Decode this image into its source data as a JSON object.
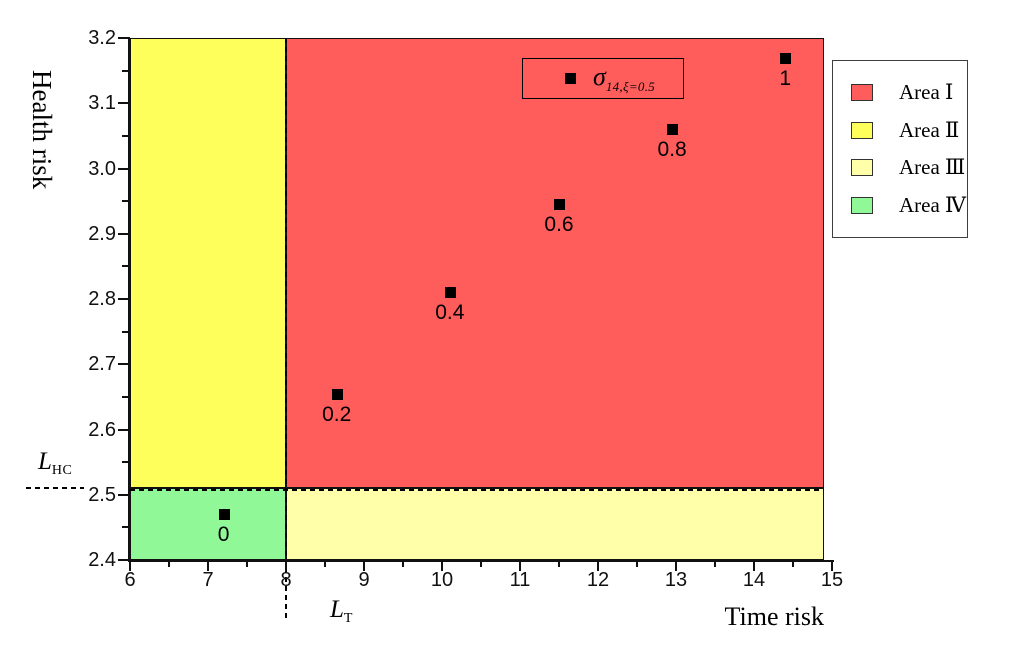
{
  "chart_data": {
    "type": "scatter",
    "xlabel": "Time risk",
    "ylabel": "Health risk",
    "xlim": [
      6,
      15
    ],
    "ylim": [
      2.4,
      3.2
    ],
    "grid": false,
    "x_ticks": [
      "6",
      "7",
      "8",
      "9",
      "10",
      "11",
      "12",
      "13",
      "14",
      "15"
    ],
    "x_minor_ticks": [
      6.5,
      7.5,
      8.5,
      9.5,
      10.5,
      11.5,
      12.5,
      13.5,
      14.5
    ],
    "y_ticks": [
      "2.4",
      "2.5",
      "2.6",
      "2.7",
      "2.8",
      "2.9",
      "3.0",
      "3.1",
      "3.2"
    ],
    "y_minor_ticks": [
      2.45,
      2.55,
      2.65,
      2.75,
      2.85,
      2.95,
      3.05,
      3.15
    ],
    "regions": [
      {
        "label": "Area Ⅰ",
        "color": "#ff5c5c",
        "x": [
          8,
          14.9
        ],
        "y": [
          2.51,
          3.2
        ]
      },
      {
        "label": "Area Ⅱ",
        "color": "#ffff5c",
        "x": [
          6,
          8
        ],
        "y": [
          2.51,
          3.2
        ]
      },
      {
        "label": "Area Ⅲ",
        "color": "#ffffaa",
        "x": [
          8,
          14.9
        ],
        "y": [
          2.4,
          2.51
        ]
      },
      {
        "label": "Area Ⅳ",
        "color": "#90f896",
        "x": [
          6,
          8
        ],
        "y": [
          2.4,
          2.51
        ]
      }
    ],
    "thresholds": {
      "x": {
        "value": 8,
        "label": "L",
        "sub": "T"
      },
      "y": {
        "value": 2.51,
        "label": "L",
        "sub": "HC"
      }
    },
    "series": [
      {
        "name": "σ14,ξ=0.5",
        "marker": "black-square",
        "color": "#000000",
        "points": [
          {
            "x": 7.2,
            "y": 2.47,
            "label": "0"
          },
          {
            "x": 8.65,
            "y": 2.655,
            "label": "0.2"
          },
          {
            "x": 10.1,
            "y": 2.81,
            "label": "0.4"
          },
          {
            "x": 11.5,
            "y": 2.945,
            "label": "0.6"
          },
          {
            "x": 12.95,
            "y": 3.06,
            "label": "0.8"
          },
          {
            "x": 14.4,
            "y": 3.17,
            "label": "1"
          }
        ]
      }
    ],
    "annotation": {
      "symbol": "σ",
      "subscript": "14,ξ=0.5"
    },
    "legend": {
      "position": "outside-right",
      "items": [
        {
          "label": "Area Ⅰ",
          "color": "#ff5c5c"
        },
        {
          "label": "Area Ⅱ",
          "color": "#ffff5c"
        },
        {
          "label": "Area Ⅲ",
          "color": "#ffffaa"
        },
        {
          "label": "Area Ⅳ",
          "color": "#90f896"
        }
      ]
    }
  }
}
